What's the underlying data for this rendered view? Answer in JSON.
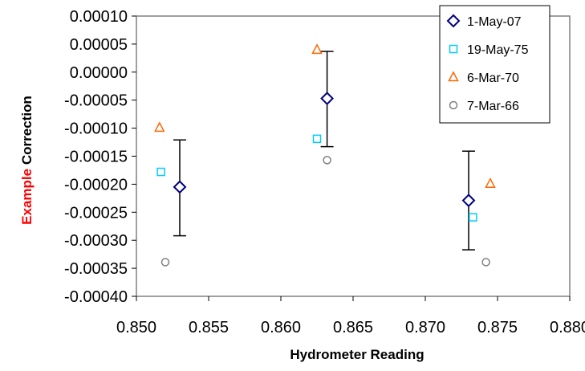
{
  "chart_data": {
    "type": "scatter",
    "title": "",
    "xlabel": "Hydrometer Reading",
    "ylabel_parts": [
      {
        "text": "Example",
        "color": "#ff0000"
      },
      {
        "text": " Correction",
        "color": "#000000"
      }
    ],
    "xlim": [
      0.85,
      0.88
    ],
    "ylim": [
      -0.0004,
      0.0001
    ],
    "x_ticks": [
      "0.850",
      "0.855",
      "0.860",
      "0.865",
      "0.870",
      "0.875",
      "0.880"
    ],
    "y_ticks": [
      "0.00010",
      "0.00005",
      "0.00000",
      "-0.00005",
      "-0.00010",
      "-0.00015",
      "-0.00020",
      "-0.00025",
      "-0.00030",
      "-0.00035",
      "-0.00040"
    ],
    "grid": false,
    "legend_position": "top-right",
    "series": [
      {
        "name": "1-May-07",
        "marker": "diamond",
        "color": "#000080",
        "points": [
          {
            "x": 0.853,
            "y": -0.000205,
            "err_low": -0.000292,
            "err_high": -0.000121
          },
          {
            "x": 0.8632,
            "y": -4.7e-05,
            "err_low": -0.000133,
            "err_high": 3.7e-05
          },
          {
            "x": 0.873,
            "y": -0.000229,
            "err_low": -0.000317,
            "err_high": -0.000141
          }
        ]
      },
      {
        "name": "19-May-75",
        "marker": "square",
        "color": "#00ccff",
        "points": [
          {
            "x": 0.8517,
            "y": -0.000178
          },
          {
            "x": 0.8625,
            "y": -0.000119
          },
          {
            "x": 0.8733,
            "y": -0.000259
          }
        ]
      },
      {
        "name": "6-Mar-70",
        "marker": "triangle",
        "color": "#ff6600",
        "points": [
          {
            "x": 0.8516,
            "y": -9.9e-05
          },
          {
            "x": 0.8625,
            "y": 4e-05
          },
          {
            "x": 0.8745,
            "y": -0.000199
          }
        ]
      },
      {
        "name": "7-Mar-66",
        "marker": "circle",
        "color": "#808080",
        "points": [
          {
            "x": 0.852,
            "y": -0.000339
          },
          {
            "x": 0.8632,
            "y": -0.000157
          },
          {
            "x": 0.8742,
            "y": -0.000339
          }
        ]
      }
    ]
  }
}
